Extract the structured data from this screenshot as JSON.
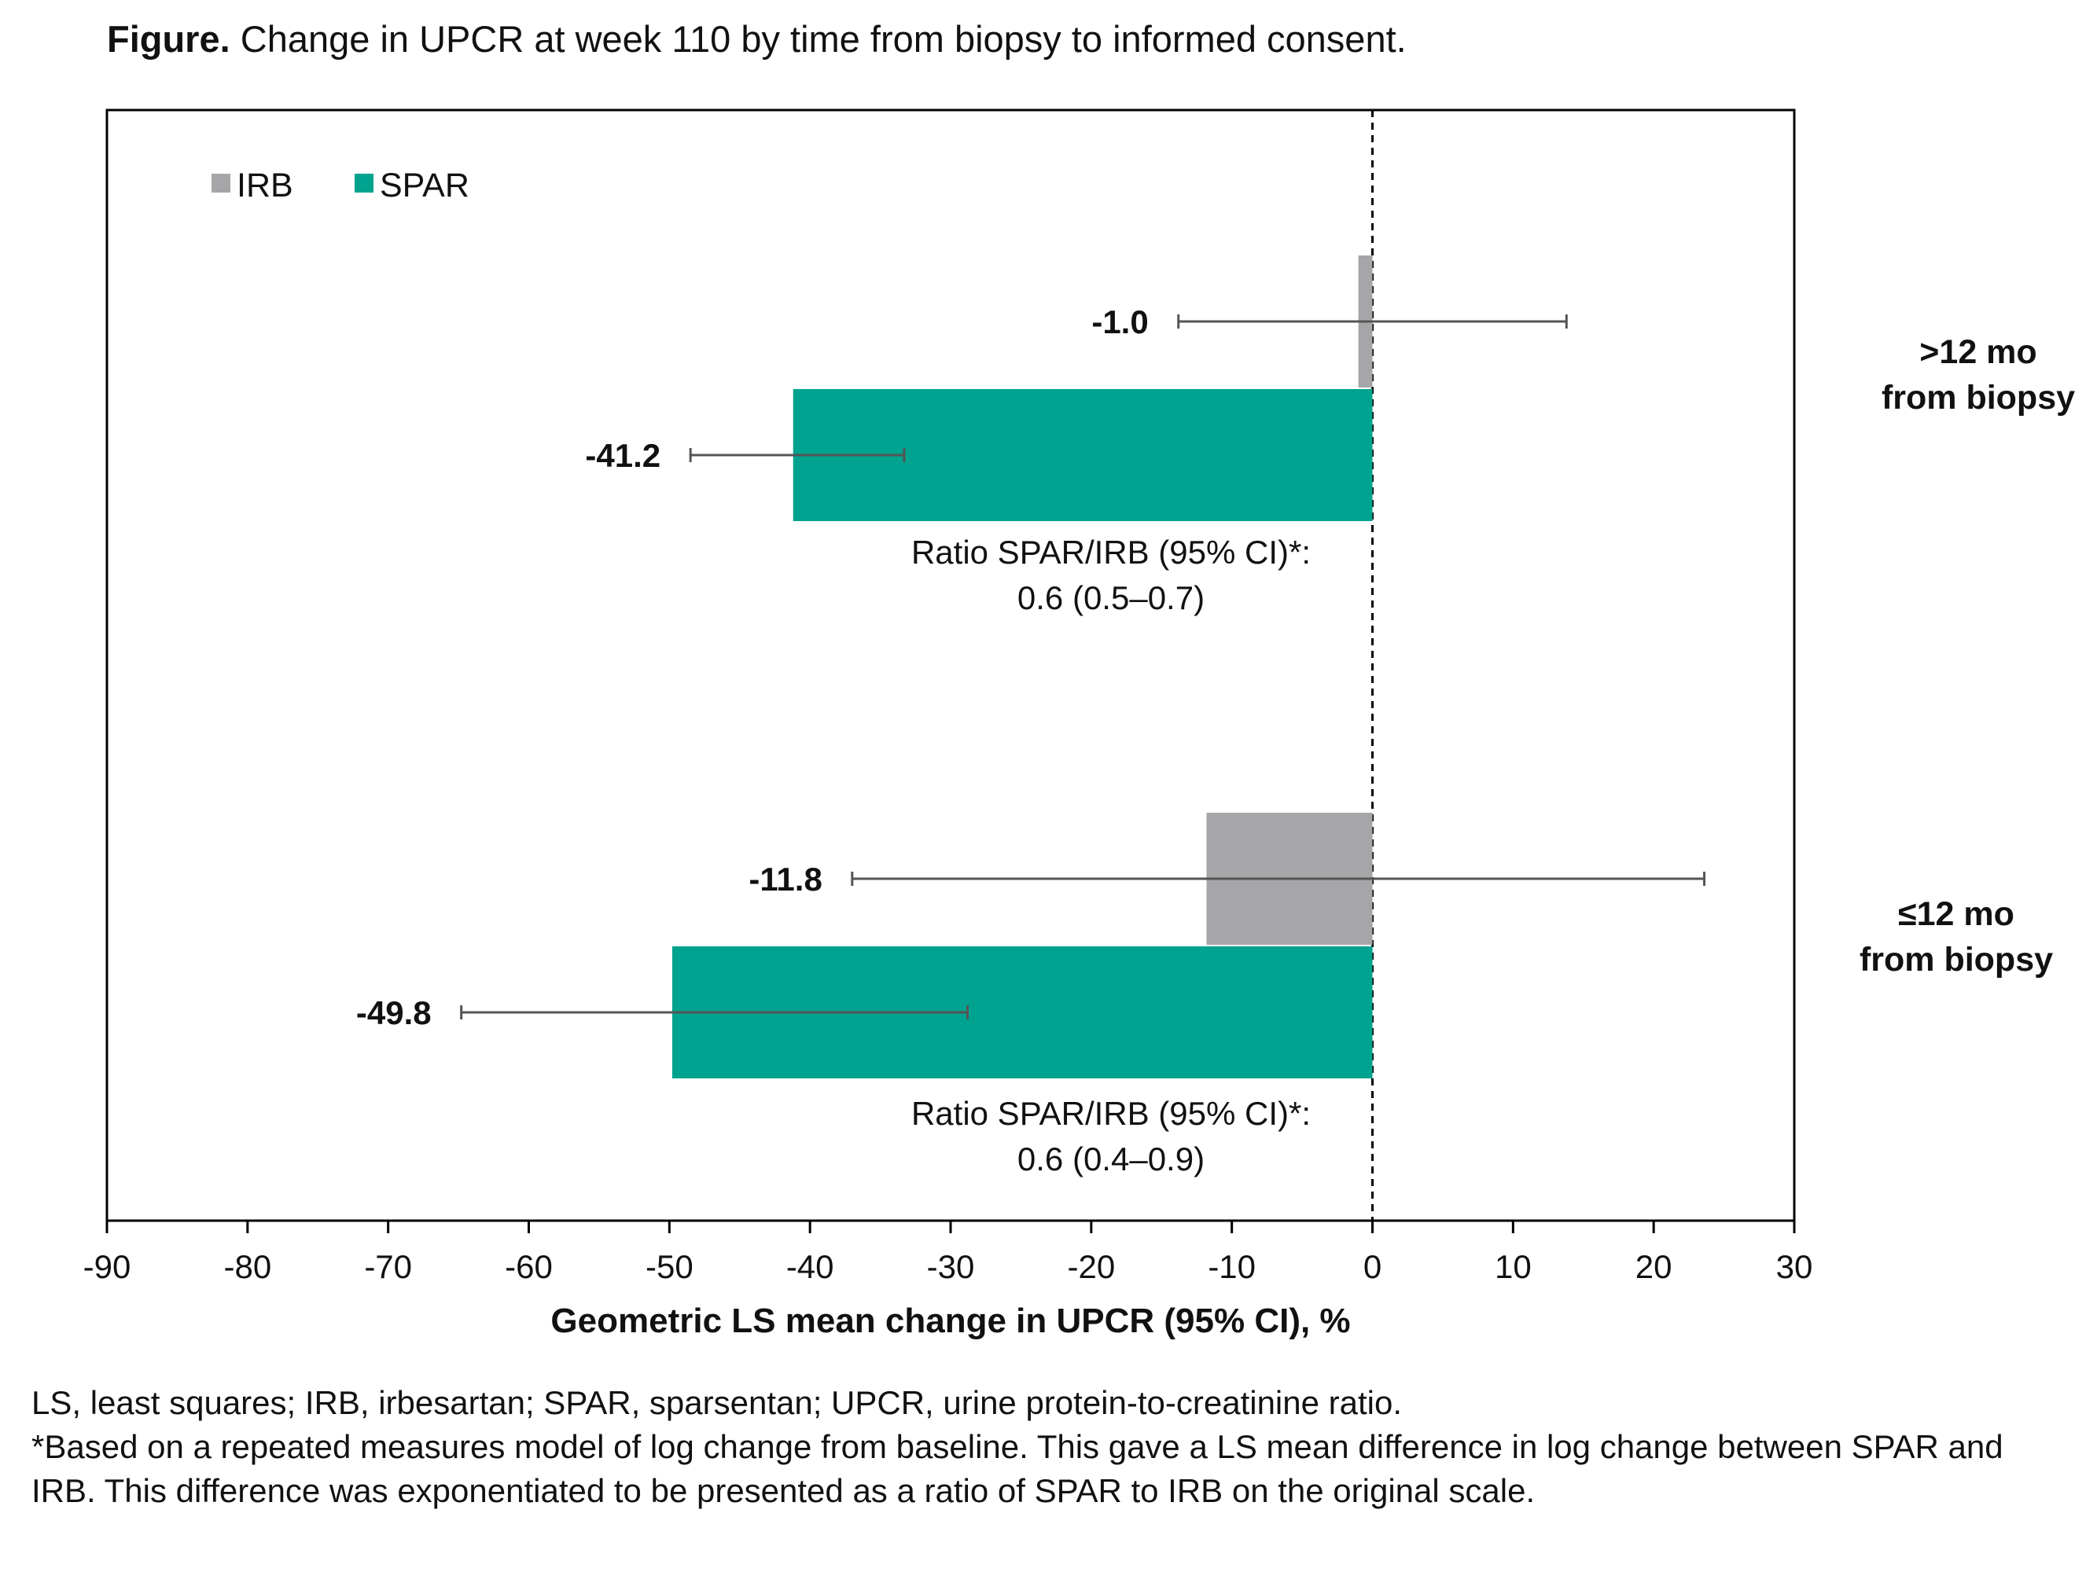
{
  "caption": {
    "label": "Figure.",
    "text": "Change in UPCR at week 110 by time from biopsy to informed consent."
  },
  "footnotes": {
    "abbreviations": "LS, least squares; IRB, irbesartan; SPAR,  sparsentan; UPCR, urine protein-to-creatinine ratio.",
    "method": "*Based on a repeated measures model of log change from baseline. This gave a LS mean difference in log change between SPAR and IRB. This difference was exponentiated to be presented as a ratio of SPAR to IRB on the original scale."
  },
  "colors": {
    "IRB": "#a6a6a8",
    "SPAR": "#00a38f",
    "error_bar": "#555555",
    "axis": "#000000"
  },
  "chart_data": {
    "type": "bar",
    "orientation": "horizontal",
    "xlabel": "Geometric LS mean change in UPCR (95% CI), %",
    "xlim": [
      -90,
      30
    ],
    "xticks": [
      -90,
      -80,
      -70,
      -60,
      -50,
      -40,
      -30,
      -20,
      -10,
      0,
      10,
      20,
      30
    ],
    "reference_line": {
      "x": 0,
      "style": "dashed"
    },
    "legend": {
      "position": "top-left",
      "entries": [
        "IRB",
        "SPAR"
      ]
    },
    "grid": false,
    "categories": [
      {
        "label_line1": ">12 mo",
        "label_line2": "from biopsy"
      },
      {
        "label_line1": "≤12 mo",
        "label_line2": "from biopsy"
      }
    ],
    "series": [
      {
        "name": "IRB",
        "values": [
          -1.0,
          -11.8
        ],
        "value_labels": [
          "-1.0",
          "-11.8"
        ],
        "ci_low": [
          -13.8,
          -37.0
        ],
        "ci_high": [
          13.8,
          23.6
        ]
      },
      {
        "name": "SPAR",
        "values": [
          -41.2,
          -49.8
        ],
        "value_labels": [
          "-41.2",
          "-49.8"
        ],
        "ci_low": [
          -48.5,
          -64.8
        ],
        "ci_high": [
          -33.3,
          -28.8
        ]
      }
    ],
    "annotations": [
      {
        "line1": "Ratio SPAR/IRB (95% CI)*:",
        "line2": "0.6 (0.5–0.7)"
      },
      {
        "line1": "Ratio SPAR/IRB (95% CI)*:",
        "line2": "0.6 (0.4–0.9)"
      }
    ]
  }
}
